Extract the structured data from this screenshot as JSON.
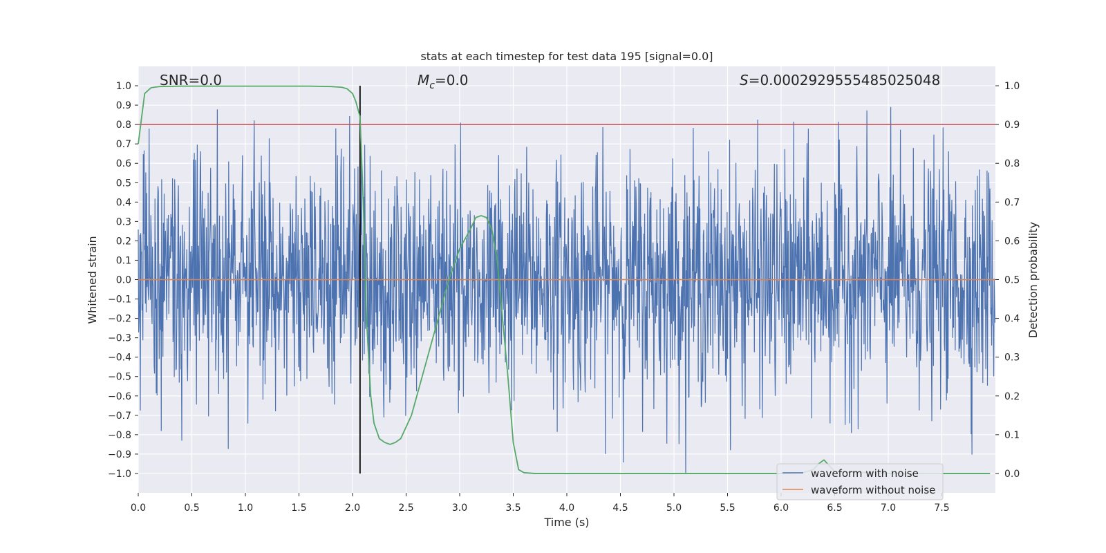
{
  "chart_data": {
    "type": "line",
    "title": "stats at each timestep for test data 195 [signal=0.0]",
    "xlabel": "Time (s)",
    "ylabel": "Whitened strain",
    "y2label": "Detection probability",
    "xlim": [
      0.0,
      8.0
    ],
    "ylim": [
      -1.1,
      1.1
    ],
    "y2lim": [
      -0.05,
      1.05
    ],
    "x_ticks": [
      0.0,
      0.5,
      1.0,
      1.5,
      2.0,
      2.5,
      3.0,
      3.5,
      4.0,
      4.5,
      5.0,
      5.5,
      6.0,
      6.5,
      7.0,
      7.5
    ],
    "x_tick_labels": [
      "0.0",
      "0.5",
      "1.0",
      "1.5",
      "2.0",
      "2.5",
      "3.0",
      "3.5",
      "4.0",
      "4.5",
      "5.0",
      "5.5",
      "6.0",
      "6.5",
      "7.0",
      "7.5"
    ],
    "y_ticks": [
      1.0,
      0.9,
      0.8,
      0.7,
      0.6,
      0.5,
      0.4,
      0.3,
      0.2,
      0.1,
      0.0,
      -0.1,
      -0.2,
      -0.3,
      -0.4,
      -0.5,
      -0.6,
      -0.7,
      -0.8,
      -0.9,
      -1.0
    ],
    "y_tick_labels": [
      "1.0",
      "0.9",
      "0.8",
      "0.7",
      "0.6",
      "0.5",
      "0.4",
      "0.3",
      "0.2",
      "0.1",
      "0.0",
      "−0.1",
      "−0.2",
      "−0.3",
      "−0.4",
      "−0.5",
      "−0.6",
      "−0.7",
      "−0.8",
      "−0.9",
      "−1.0"
    ],
    "y2_ticks": [
      1.0,
      0.9,
      0.8,
      0.7,
      0.6,
      0.5,
      0.4,
      0.3,
      0.2,
      0.1,
      0.0
    ],
    "y2_tick_labels": [
      "1.0",
      "0.9",
      "0.8",
      "0.7",
      "0.6",
      "0.5",
      "0.4",
      "0.3",
      "0.2",
      "0.1",
      "0.0"
    ],
    "grid": true,
    "legend_position": "bottom-right",
    "annotations": {
      "snr": "SNR=0.0",
      "mc_symbol": "M",
      "mc_sub": "c",
      "mc_value": "=0.0",
      "s_symbol": "S",
      "s_value": "=0.0002929555485025048"
    },
    "vertical_line_x": 2.07,
    "threshold_probability": 0.9,
    "series": [
      {
        "name": "waveform with noise",
        "color": "#4c72b0",
        "description": "dense noise trace, roughly within [-1.0, 1.0]",
        "amplitude_sigma": 0.3,
        "sample_rate_hz": 256
      },
      {
        "name": "waveform without noise",
        "color": "#dd8452",
        "x": [
          0.0,
          8.0
        ],
        "y": [
          0.0,
          0.0
        ]
      },
      {
        "name": "detection probability",
        "color": "#55a868",
        "axis": "right",
        "x": [
          0.0,
          0.06,
          0.12,
          0.2,
          0.4,
          0.8,
          1.2,
          1.6,
          1.8,
          1.9,
          1.95,
          2.0,
          2.03,
          2.07,
          2.1,
          2.13,
          2.17,
          2.2,
          2.25,
          2.3,
          2.35,
          2.4,
          2.45,
          2.5,
          2.55,
          2.6,
          2.7,
          2.8,
          2.9,
          3.0,
          3.1,
          3.15,
          3.2,
          3.25,
          3.3,
          3.35,
          3.4,
          3.45,
          3.5,
          3.55,
          3.6,
          3.7,
          4.0,
          5.0,
          6.0,
          6.2,
          6.3,
          6.35,
          6.4,
          6.45,
          6.5,
          7.0,
          7.5,
          7.95
        ],
        "y": [
          0.85,
          0.98,
          0.995,
          0.998,
          0.999,
          0.999,
          0.999,
          0.999,
          0.998,
          0.996,
          0.992,
          0.98,
          0.96,
          0.92,
          0.7,
          0.4,
          0.2,
          0.13,
          0.09,
          0.08,
          0.075,
          0.08,
          0.09,
          0.12,
          0.15,
          0.2,
          0.3,
          0.4,
          0.5,
          0.58,
          0.63,
          0.66,
          0.665,
          0.66,
          0.63,
          0.55,
          0.4,
          0.25,
          0.08,
          0.01,
          0.002,
          0.0,
          0.0,
          0.0,
          0.0,
          0.002,
          0.01,
          0.025,
          0.035,
          0.02,
          0.005,
          0.0,
          0.0,
          0.0
        ]
      }
    ]
  }
}
